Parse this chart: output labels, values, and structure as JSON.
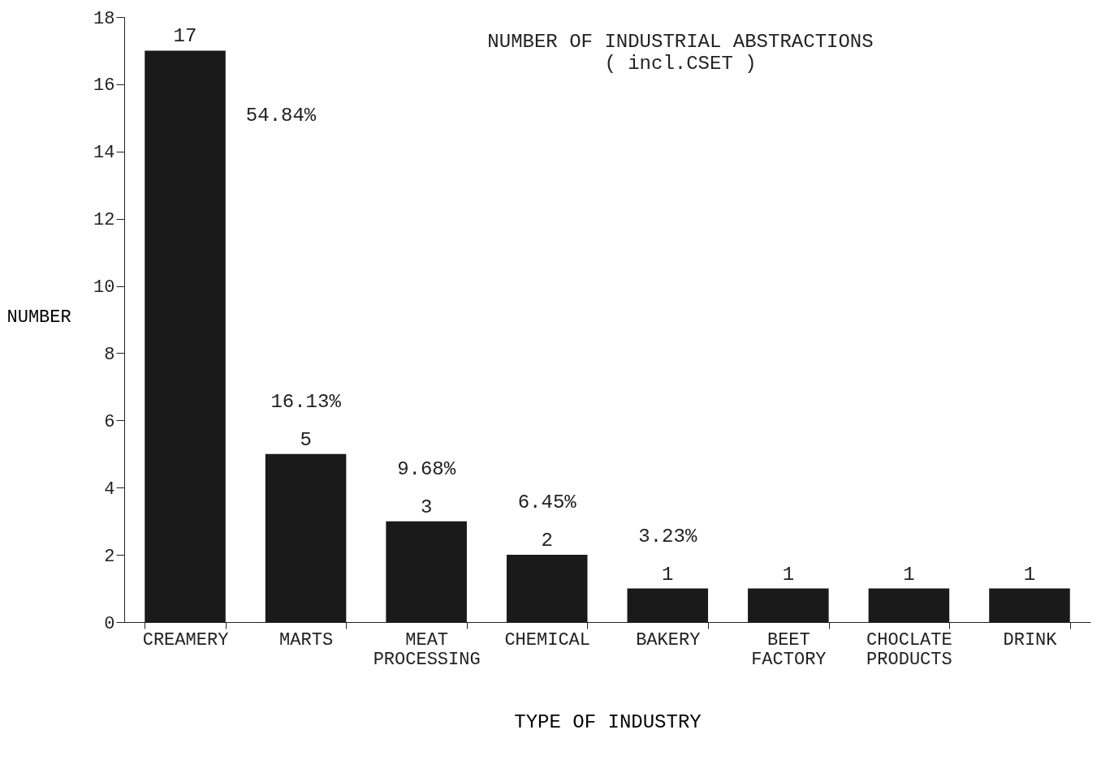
{
  "chart_data": {
    "type": "bar",
    "title": "NUMBER OF INDUSTRIAL ABSTRACTIONS",
    "subtitle": "( incl.CSET )",
    "xlabel": "TYPE OF INDUSTRY",
    "ylabel": "NUMBER",
    "categories": [
      "CREAMERY",
      "MARTS",
      "MEAT PROCESSING",
      "CHEMICAL",
      "BAKERY",
      "BEET FACTORY",
      "CHOCLATE PRODUCTS",
      "DRINK"
    ],
    "values": [
      17,
      5,
      3,
      2,
      1,
      1,
      1,
      1
    ],
    "color": "#1a1a1a",
    "ylim": [
      0,
      18
    ],
    "yticks": [
      0,
      2,
      4,
      6,
      8,
      10,
      12,
      14,
      16,
      18
    ],
    "grid": false,
    "data_labels": true,
    "annotations": [
      "54.84%",
      "16.13%",
      "9.68%",
      "6.45%",
      "3.23%"
    ]
  }
}
